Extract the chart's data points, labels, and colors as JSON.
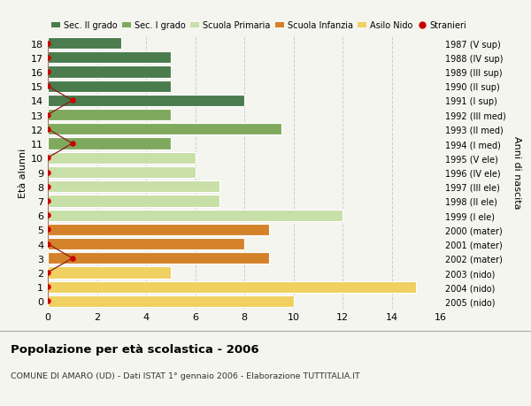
{
  "ages": [
    18,
    17,
    16,
    15,
    14,
    13,
    12,
    11,
    10,
    9,
    8,
    7,
    6,
    5,
    4,
    3,
    2,
    1,
    0
  ],
  "right_labels": [
    "1987 (V sup)",
    "1988 (IV sup)",
    "1989 (III sup)",
    "1990 (II sup)",
    "1991 (I sup)",
    "1992 (III med)",
    "1993 (II med)",
    "1994 (I med)",
    "1995 (V ele)",
    "1996 (IV ele)",
    "1997 (III ele)",
    "1998 (II ele)",
    "1999 (I ele)",
    "2000 (mater)",
    "2001 (mater)",
    "2002 (mater)",
    "2003 (nido)",
    "2004 (nido)",
    "2005 (nido)"
  ],
  "bar_values": [
    3,
    5,
    5,
    5,
    8,
    5,
    9.5,
    5,
    6,
    6,
    7,
    7,
    12,
    9,
    8,
    9,
    5,
    15,
    10
  ],
  "bar_colors": [
    "#4a7c4e",
    "#4a7c4e",
    "#4a7c4e",
    "#4a7c4e",
    "#4a7c4e",
    "#7faa5e",
    "#7faa5e",
    "#7faa5e",
    "#c8dfa8",
    "#c8dfa8",
    "#c8dfa8",
    "#c8dfa8",
    "#c8dfa8",
    "#d4822a",
    "#d4822a",
    "#d4822a",
    "#f0d060",
    "#f0d060",
    "#f0d060"
  ],
  "stranieri_x": [
    0,
    0,
    0,
    0,
    1,
    0,
    0,
    1,
    0,
    0,
    0,
    0,
    0,
    0,
    0,
    1,
    0,
    0,
    0
  ],
  "xlim": [
    0,
    16
  ],
  "xticks": [
    0,
    2,
    4,
    6,
    8,
    10,
    12,
    14,
    16
  ],
  "ylabel_left": "Età alunni",
  "ylabel_right": "Anni di nascita",
  "title_bold": "Popolazione per età scolastica - 2006",
  "subtitle": "COMUNE DI AMARO (UD) - Dati ISTAT 1° gennaio 2006 - Elaborazione TUTTITALIA.IT",
  "legend_labels": [
    "Sec. II grado",
    "Sec. I grado",
    "Scuola Primaria",
    "Scuola Infanzia",
    "Asilo Nido",
    "Stranieri"
  ],
  "legend_colors": [
    "#4a7c4e",
    "#7faa5e",
    "#c8dfa8",
    "#d4822a",
    "#f0d060",
    "#cc0000"
  ],
  "bg_color": "#f5f5f0",
  "grid_color": "#cccccc",
  "bar_height": 0.82
}
